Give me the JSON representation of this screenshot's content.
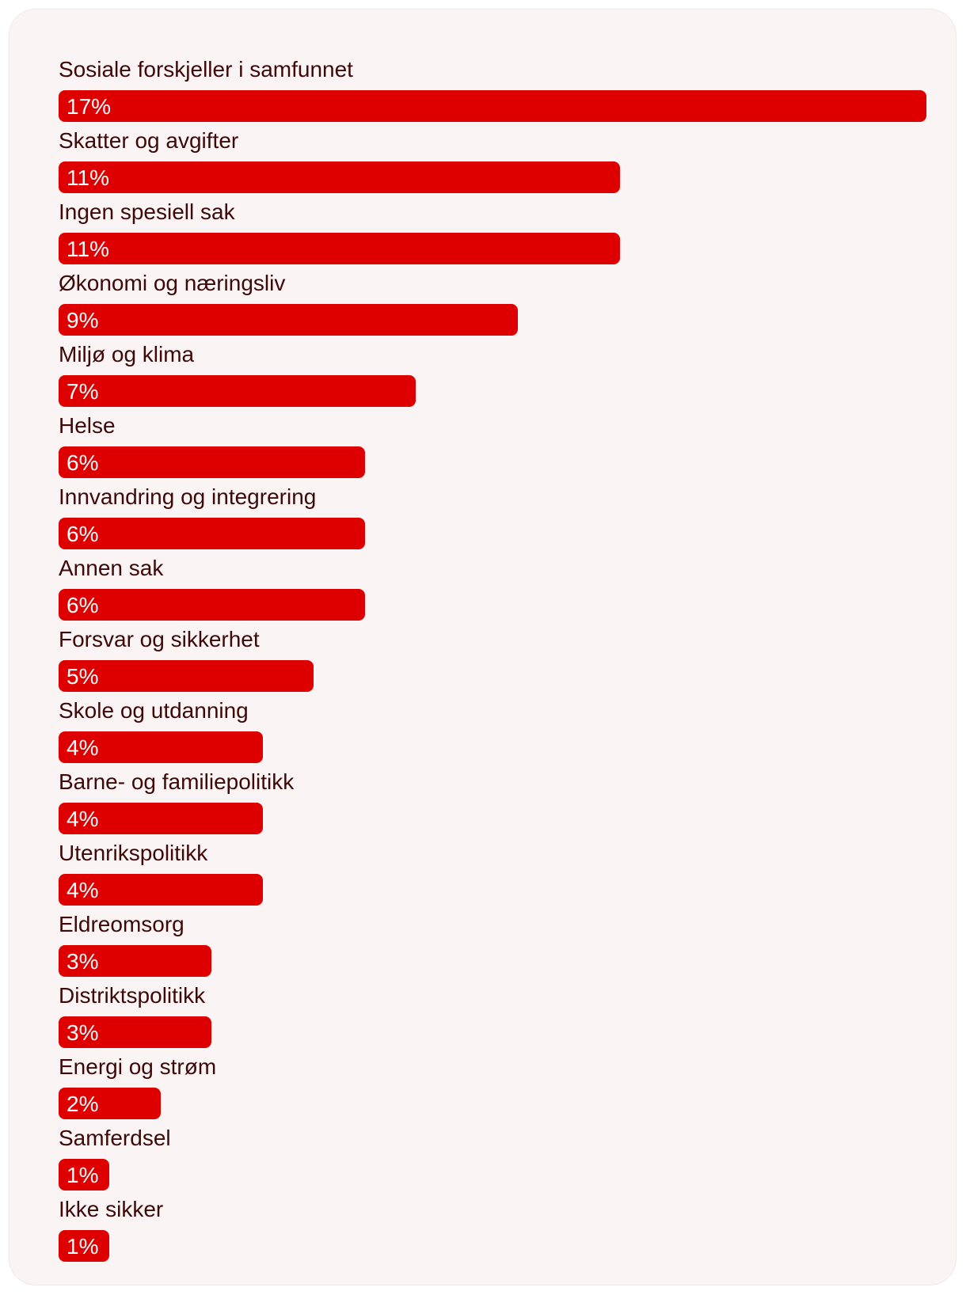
{
  "chart_data": {
    "type": "bar",
    "orientation": "horizontal",
    "categories": [
      "Sosiale forskjeller i samfunnet",
      "Skatter og avgifter",
      "Ingen spesiell sak",
      "Økonomi og næringsliv",
      "Miljø og klima",
      "Helse",
      "Innvandring og integrering",
      "Annen sak",
      "Forsvar og sikkerhet",
      "Skole og utdanning",
      "Barne- og familiepolitikk",
      "Utenrikspolitikk",
      "Eldreomsorg",
      "Distriktspolitikk",
      "Energi og strøm",
      "Samferdsel",
      "Ikke sikker"
    ],
    "values": [
      17,
      11,
      11,
      9,
      7,
      6,
      6,
      6,
      5,
      4,
      4,
      4,
      3,
      3,
      2,
      1,
      1
    ],
    "value_labels": [
      "17%",
      "11%",
      "11%",
      "9%",
      "7%",
      "6%",
      "6%",
      "6%",
      "5%",
      "4%",
      "4%",
      "4%",
      "3%",
      "3%",
      "2%",
      "1%",
      "1%"
    ],
    "unit": "%",
    "xlim": [
      0,
      17
    ],
    "grid": false,
    "bar_color": "#de0000",
    "label_color": "#3f0808",
    "background_color": "#faf5f4"
  }
}
